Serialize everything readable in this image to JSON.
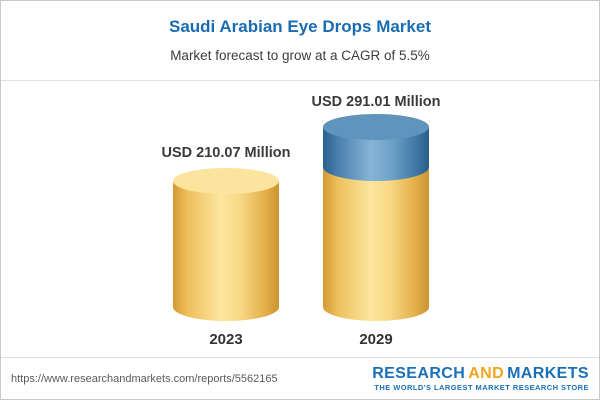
{
  "header": {
    "title": "Saudi Arabian Eye Drops Market",
    "subtitle": "Market forecast to grow at a CAGR of 5.5%"
  },
  "chart_data": {
    "type": "bar",
    "variant": "3d-cylinder",
    "title": "Saudi Arabian Eye Drops Market",
    "subtitle": "Market forecast to grow at a CAGR of 5.5%",
    "unit": "USD Million",
    "categories": [
      "2023",
      "2029"
    ],
    "values": [
      210.07,
      291.01
    ],
    "value_labels": [
      "USD 210.07 Million",
      "USD 291.01 Million"
    ],
    "cagr_percent": 5.5,
    "growth_segment": {
      "category": "2029",
      "from": 210.07,
      "to": 291.01
    },
    "colors": {
      "base": "#f3cd6f",
      "growth": "#3d76a6"
    },
    "legend": "none",
    "grid": false
  },
  "footer": {
    "url": "https://www.researchandmarkets.com/reports/5562165",
    "logo": {
      "word1": "RESEARCH",
      "word2": "AND",
      "word3": "MARKETS",
      "tagline": "THE WORLD'S LARGEST MARKET RESEARCH STORE"
    }
  }
}
